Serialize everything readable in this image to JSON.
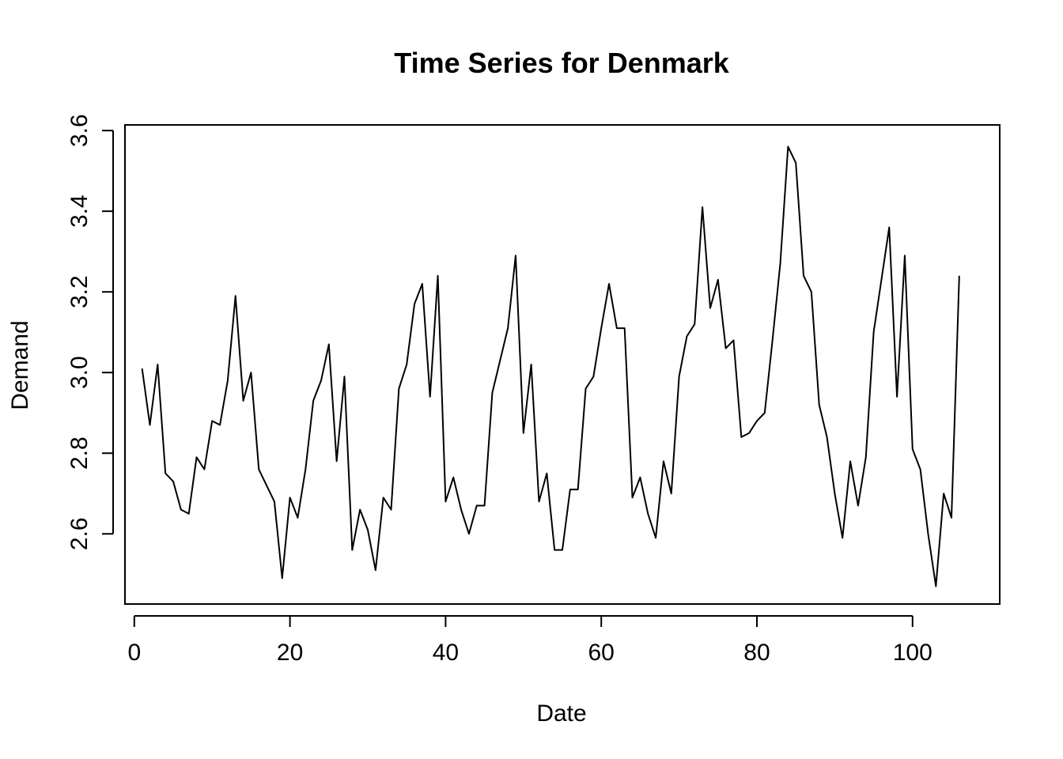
{
  "chart_data": {
    "type": "line",
    "title": "Time Series for Denmark",
    "xlabel": "Date",
    "ylabel": "Demand",
    "xlim": [
      -1.2,
      111.2
    ],
    "ylim": [
      2.426,
      3.614
    ],
    "xticks": [
      0,
      20,
      40,
      60,
      80,
      100
    ],
    "xtick_labels": [
      "0",
      "20",
      "40",
      "60",
      "80",
      "100"
    ],
    "yticks": [
      2.6,
      2.8,
      3.0,
      3.2,
      3.4,
      3.6
    ],
    "ytick_labels": [
      "2.6",
      "2.8",
      "3.0",
      "3.2",
      "3.4",
      "3.6"
    ],
    "grid": false,
    "legend": "none",
    "series": [
      {
        "x": [
          1,
          2,
          3,
          4,
          5,
          6,
          7,
          8,
          9,
          10,
          11,
          12,
          13,
          14,
          15,
          16,
          17,
          18,
          19,
          20,
          21,
          22,
          23,
          24,
          25,
          26,
          27,
          28,
          29,
          30,
          31,
          32,
          33,
          34,
          35,
          36,
          37,
          38,
          39,
          40,
          41,
          42,
          43,
          44,
          45,
          46,
          47,
          48,
          49,
          50,
          51,
          52,
          53,
          54,
          55,
          56,
          57,
          58,
          59,
          60,
          61,
          62,
          63,
          64,
          65,
          66,
          67,
          68,
          69,
          70,
          71,
          72,
          73,
          74,
          75,
          76,
          77,
          78,
          79,
          80,
          81,
          82,
          83,
          84,
          85,
          86,
          87,
          88,
          89,
          90,
          91,
          92,
          93,
          94,
          95,
          96,
          97,
          98,
          99,
          100,
          101,
          102,
          103,
          104,
          105,
          106
        ],
        "values": [
          3.01,
          2.87,
          3.02,
          2.75,
          2.73,
          2.66,
          2.65,
          2.79,
          2.76,
          2.88,
          2.87,
          2.98,
          3.19,
          2.93,
          3.0,
          2.76,
          2.72,
          2.68,
          2.49,
          2.69,
          2.64,
          2.76,
          2.93,
          2.98,
          3.07,
          2.78,
          2.99,
          2.56,
          2.66,
          2.61,
          2.51,
          2.69,
          2.66,
          2.96,
          3.02,
          3.17,
          3.22,
          2.94,
          3.24,
          2.68,
          2.74,
          2.66,
          2.6,
          2.67,
          2.67,
          2.95,
          3.03,
          3.11,
          3.29,
          2.85,
          3.02,
          2.68,
          2.75,
          2.56,
          2.56,
          2.71,
          2.71,
          2.96,
          2.99,
          3.11,
          3.22,
          3.11,
          3.11,
          2.69,
          2.74,
          2.65,
          2.59,
          2.78,
          2.7,
          2.99,
          3.09,
          3.12,
          3.41,
          3.16,
          3.23,
          3.06,
          3.08,
          2.84,
          2.85,
          2.88,
          2.9,
          3.08,
          3.27,
          3.56,
          3.52,
          3.24,
          3.2,
          2.92,
          2.84,
          2.7,
          2.59,
          2.78,
          2.67,
          2.79,
          3.1,
          3.23,
          3.36,
          2.94,
          3.29,
          2.81,
          2.76,
          2.6,
          2.47,
          2.7,
          2.64,
          3.24
        ]
      }
    ]
  }
}
